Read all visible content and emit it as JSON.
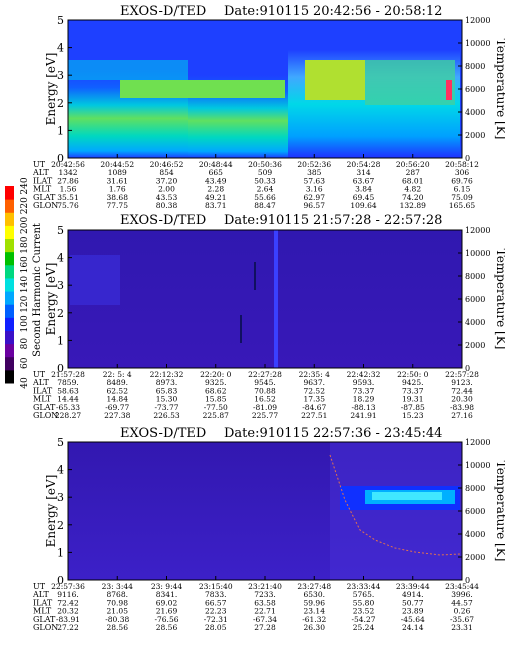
{
  "chart_data": [
    {
      "type": "heatmap",
      "title": "EXOS-D/TED",
      "date_label": "Date:910115",
      "time_range": "20:42:56 - 20:58:12",
      "ylabel": "Energy [eV]",
      "ylabel_right": "Temperature [K]",
      "ylim": [
        0,
        5
      ],
      "yticks": [
        "0",
        "1",
        "2",
        "3",
        "4",
        "5"
      ],
      "ylim_right": [
        0,
        12000
      ],
      "yticks_right": [
        "0",
        "2000",
        "4000",
        "6000",
        "8000",
        "10000",
        "12000"
      ],
      "row_labels": [
        "UT",
        "ALT",
        "ILAT",
        "MLT",
        "GLAT",
        "GLON"
      ],
      "columns": [
        [
          "20:42:56",
          "1342",
          "27.86",
          "1.56",
          "35.51",
          "75.76"
        ],
        [
          "20:44:52",
          "1089",
          "31.61",
          "1.76",
          "38.68",
          "77.75"
        ],
        [
          "20:46:52",
          "854",
          "37.20",
          "2.00",
          "43.53",
          "80.38"
        ],
        [
          "20:48:44",
          "665",
          "43.49",
          "2.28",
          "49.21",
          "83.71"
        ],
        [
          "20:50:36",
          "509",
          "50.33",
          "2.64",
          "55.66",
          "88.47"
        ],
        [
          "20:52:36",
          "385",
          "57.63",
          "3.16",
          "62.97",
          "96.57"
        ],
        [
          "20:54:28",
          "314",
          "63.67",
          "3.84",
          "69.45",
          "109.64"
        ],
        [
          "20:56:20",
          "287",
          "68.01",
          "4.82",
          "74.20",
          "132.89"
        ],
        [
          "20:58:12",
          "306",
          "69.76",
          "6.15",
          "75.09",
          "165.65"
        ]
      ]
    },
    {
      "type": "heatmap",
      "title": "EXOS-D/TED",
      "date_label": "Date:910115",
      "time_range": "21:57:28 - 22:57:28",
      "ylabel": "Energy [eV]",
      "ylabel_right": "Temperature [K]",
      "ylim": [
        0,
        5
      ],
      "yticks": [
        "0",
        "1",
        "2",
        "3",
        "4",
        "5"
      ],
      "ylim_right": [
        0,
        12000
      ],
      "yticks_right": [
        "0",
        "2000",
        "4000",
        "6000",
        "8000",
        "10000",
        "12000"
      ],
      "row_labels": [
        "UT",
        "ALT",
        "ILAT",
        "MLT",
        "GLAT",
        "GLON"
      ],
      "columns": [
        [
          "21:57:28",
          "7859.",
          "58.63",
          "14.44",
          "-65.33",
          "228.27"
        ],
        [
          "22: 5: 4",
          "8489.",
          "62.52",
          "14.84",
          "-69.77",
          "227.38"
        ],
        [
          "22:12:32",
          "8973.",
          "65.83",
          "15.30",
          "-73.77",
          "226.53"
        ],
        [
          "22:20: 0",
          "9325.",
          "68.62",
          "15.85",
          "-77.50",
          "225.87"
        ],
        [
          "22:27:28",
          "9545.",
          "70.88",
          "16.52",
          "-81.09",
          "225.77"
        ],
        [
          "22:35: 4",
          "9637.",
          "72.52",
          "17.35",
          "-84.67",
          "227.51"
        ],
        [
          "22:42:32",
          "9593.",
          "73.37",
          "18.29",
          "-88.13",
          "241.91"
        ],
        [
          "22:50: 0",
          "9425.",
          "73.37",
          "19.31",
          "-87.85",
          "15.23"
        ],
        [
          "22:57:28",
          "9123.",
          "72.44",
          "20.30",
          "-83.98",
          "27.16"
        ]
      ]
    },
    {
      "type": "heatmap",
      "title": "EXOS-D/TED",
      "date_label": "Date:910115",
      "time_range": "22:57:36 - 23:45:44",
      "ylabel": "Energy [eV]",
      "ylabel_right": "Temperature [K]",
      "ylim": [
        0,
        5
      ],
      "yticks": [
        "0",
        "1",
        "2",
        "3",
        "4",
        "5"
      ],
      "ylim_right": [
        0,
        12000
      ],
      "yticks_right": [
        "0",
        "2000",
        "4000",
        "6000",
        "8000",
        "10000",
        "12000"
      ],
      "row_labels": [
        "UT",
        "ALT",
        "ILAT",
        "MLT",
        "GLAT",
        "GLON"
      ],
      "columns": [
        [
          "22:57:36",
          "9116.",
          "72.42",
          "20.32",
          "-83.91",
          "27.22"
        ],
        [
          "23: 3:44",
          "8768.",
          "70.98",
          "21.05",
          "-80.38",
          "28.56"
        ],
        [
          "23: 9:44",
          "8341.",
          "69.02",
          "21.69",
          "-76.56",
          "28.56"
        ],
        [
          "23:15:40",
          "7833.",
          "66.57",
          "22.23",
          "-72.31",
          "28.05"
        ],
        [
          "23:21:40",
          "7233.",
          "63.58",
          "22.71",
          "-67.34",
          "27.28"
        ],
        [
          "23:27:48",
          "6530.",
          "59.96",
          "23.14",
          "-61.32",
          "26.30"
        ],
        [
          "23:33:44",
          "5765.",
          "55.80",
          "23.52",
          "-54.27",
          "25.24"
        ],
        [
          "23:39:44",
          "4914.",
          "50.77",
          "23.89",
          "-45.64",
          "24.14"
        ],
        [
          "23:45:44",
          "3996.",
          "44.57",
          "0.26",
          "-35.67",
          "23.31"
        ]
      ]
    }
  ],
  "colorbar": {
    "label": "Second Harmonic Current",
    "ticks": [
      "40",
      "60",
      "80",
      "100",
      "120",
      "140",
      "160",
      "180",
      "200",
      "220",
      "240"
    ],
    "range": [
      40,
      240
    ],
    "colors": [
      "#000000",
      "#400060",
      "#6a00a0",
      "#3a10c8",
      "#1020ff",
      "#0060ff",
      "#00a8ff",
      "#00e0e0",
      "#00d880",
      "#00c000",
      "#a0e000",
      "#ffff00",
      "#ffc000",
      "#ff6000",
      "#ff0000"
    ]
  }
}
